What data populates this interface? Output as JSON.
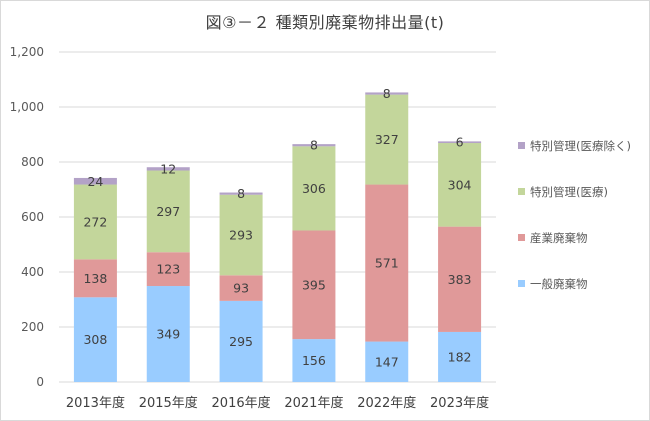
{
  "chart_data": {
    "type": "bar",
    "stacked": true,
    "title": "図③－２ 種類別廃棄物排出量(t)",
    "categories": [
      "2013年度",
      "2015年度",
      "2016年度",
      "2021年度",
      "2022年度",
      "2023年度"
    ],
    "series": [
      {
        "name": "一般廃棄物",
        "color": "#99ccff",
        "values": [
          308,
          349,
          295,
          156,
          147,
          182
        ]
      },
      {
        "name": "産業廃棄物",
        "color": "#e09999",
        "values": [
          138,
          123,
          93,
          395,
          571,
          383
        ]
      },
      {
        "name": "特別管理(医療)",
        "color": "#c3d69b",
        "values": [
          272,
          297,
          293,
          306,
          327,
          304
        ]
      },
      {
        "name": "特別管理(医療除く)",
        "color": "#b3a2c7",
        "values": [
          24,
          12,
          8,
          8,
          8,
          6
        ]
      }
    ],
    "yticks": [
      "0",
      "200",
      "400",
      "600",
      "800",
      "1,000",
      "1,200"
    ],
    "ylim": [
      0,
      1200
    ],
    "grid": true,
    "legend_position": "right"
  }
}
